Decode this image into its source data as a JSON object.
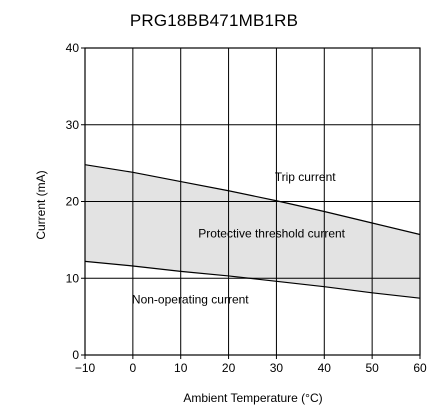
{
  "chart_data": {
    "type": "area",
    "title": "PRG18BB471MB1RB",
    "xlabel": "Ambient Temperature (°C)",
    "ylabel": "Current (mA)",
    "xlim": [
      -10,
      60
    ],
    "ylim": [
      0,
      40
    ],
    "x_ticks": [
      "−10",
      "0",
      "10",
      "20",
      "30",
      "40",
      "50",
      "60"
    ],
    "x_tick_values": [
      -10,
      0,
      10,
      20,
      30,
      40,
      50,
      60
    ],
    "y_ticks": [
      "0",
      "10",
      "20",
      "30",
      "40"
    ],
    "y_tick_values": [
      0,
      10,
      20,
      30,
      40
    ],
    "grid": true,
    "band_fill": "#e3e3e3",
    "series": [
      {
        "name": "Trip current",
        "x": [
          -10,
          0,
          10,
          20,
          30,
          40,
          50,
          60
        ],
        "y": [
          24.8,
          23.8,
          22.6,
          21.4,
          20.1,
          18.7,
          17.2,
          15.7
        ]
      },
      {
        "name": "Non-operating current",
        "x": [
          -10,
          0,
          10,
          20,
          30,
          40,
          50,
          60
        ],
        "y": [
          12.2,
          11.6,
          10.9,
          10.3,
          9.6,
          8.9,
          8.1,
          7.4
        ]
      }
    ],
    "annotations": [
      {
        "text": "Trip current",
        "x": 36,
        "y": 23.2
      },
      {
        "text": "Protective threshold current",
        "x": 29,
        "y": 15.8
      },
      {
        "text": "Non-operating current",
        "x": 12,
        "y": 7.2
      }
    ]
  }
}
